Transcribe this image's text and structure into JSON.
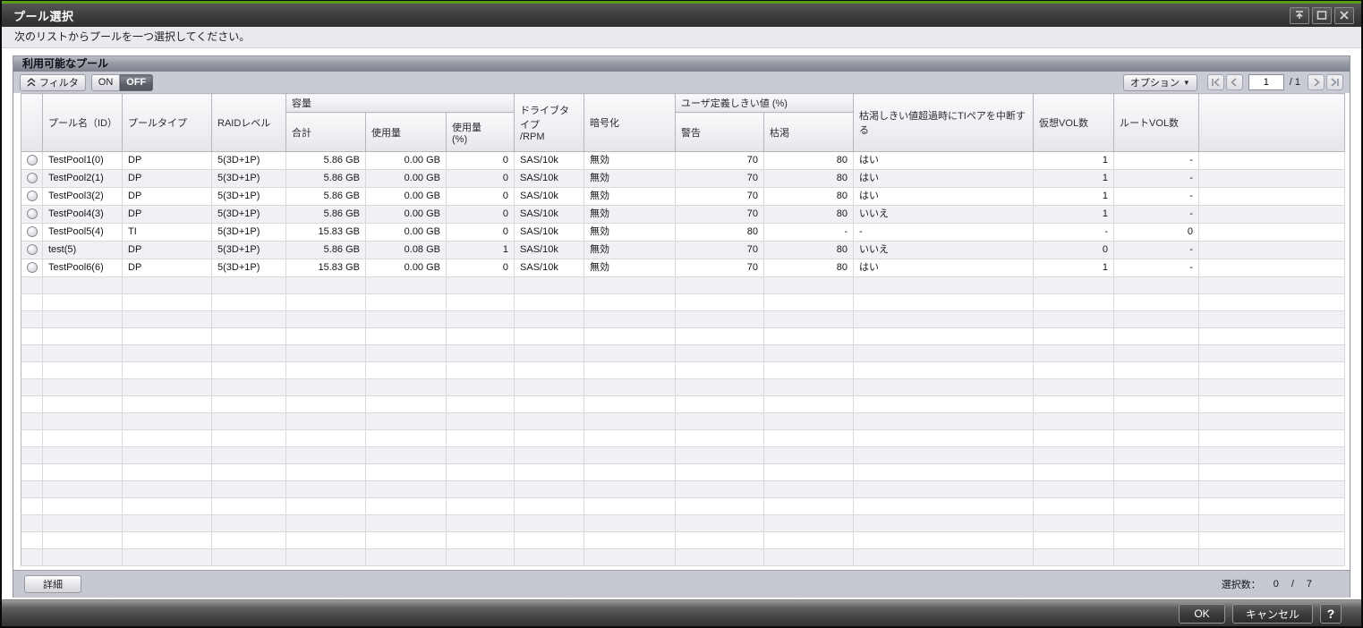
{
  "window": {
    "title": "プール選択",
    "instruction": "次のリストからプールを一つ選択してください。"
  },
  "panel": {
    "title": "利用可能なプール",
    "toolbar": {
      "filter_label": "フィルタ",
      "on_label": "ON",
      "off_label": "OFF",
      "filter_state": "OFF",
      "options_label": "オプション",
      "page_value": "1",
      "page_total": "/ 1"
    },
    "footer": {
      "detail_label": "詳細",
      "selection_label": "選択数：",
      "selection_count": "0",
      "selection_sep": "/",
      "selection_total": "7"
    }
  },
  "table": {
    "groups": {
      "capacity": "容量",
      "user_threshold": "ユーザ定義しきい値 (%)"
    },
    "headers": {
      "name": "プール名（ID）",
      "type": "プールタイプ",
      "raid": "RAIDレベル",
      "total": "合計",
      "used": "使用量",
      "used_pct": "使用量\n(%)",
      "drive": "ドライブタイプ\n/RPM",
      "encryption": "暗号化",
      "warning": "警告",
      "depletion": "枯渇",
      "suspend_ti": "枯渇しきい値超過時にTIペアを中断する",
      "virtual_vols": "仮想VOL数",
      "root_vols": "ルートVOL数"
    },
    "rows": [
      {
        "name": "TestPool1(0)",
        "type": "DP",
        "raid": "5(3D+1P)",
        "total": "5.86 GB",
        "used": "0.00 GB",
        "used_pct": "0",
        "drive": "SAS/10k",
        "encryption": "無効",
        "warning": "70",
        "depletion": "80",
        "suspend_ti": "はい",
        "virtual_vols": "1",
        "root_vols": "-"
      },
      {
        "name": "TestPool2(1)",
        "type": "DP",
        "raid": "5(3D+1P)",
        "total": "5.86 GB",
        "used": "0.00 GB",
        "used_pct": "0",
        "drive": "SAS/10k",
        "encryption": "無効",
        "warning": "70",
        "depletion": "80",
        "suspend_ti": "はい",
        "virtual_vols": "1",
        "root_vols": "-"
      },
      {
        "name": "TestPool3(2)",
        "type": "DP",
        "raid": "5(3D+1P)",
        "total": "5.86 GB",
        "used": "0.00 GB",
        "used_pct": "0",
        "drive": "SAS/10k",
        "encryption": "無効",
        "warning": "70",
        "depletion": "80",
        "suspend_ti": "はい",
        "virtual_vols": "1",
        "root_vols": "-"
      },
      {
        "name": "TestPool4(3)",
        "type": "DP",
        "raid": "5(3D+1P)",
        "total": "5.86 GB",
        "used": "0.00 GB",
        "used_pct": "0",
        "drive": "SAS/10k",
        "encryption": "無効",
        "warning": "70",
        "depletion": "80",
        "suspend_ti": "いいえ",
        "virtual_vols": "1",
        "root_vols": "-"
      },
      {
        "name": "TestPool5(4)",
        "type": "TI",
        "raid": "5(3D+1P)",
        "total": "15.83 GB",
        "used": "0.00 GB",
        "used_pct": "0",
        "drive": "SAS/10k",
        "encryption": "無効",
        "warning": "80",
        "depletion": "-",
        "suspend_ti": "-",
        "virtual_vols": "-",
        "root_vols": "0"
      },
      {
        "name": "test(5)",
        "type": "DP",
        "raid": "5(3D+1P)",
        "total": "5.86 GB",
        "used": "0.08 GB",
        "used_pct": "1",
        "drive": "SAS/10k",
        "encryption": "無効",
        "warning": "70",
        "depletion": "80",
        "suspend_ti": "いいえ",
        "virtual_vols": "0",
        "root_vols": "-"
      },
      {
        "name": "TestPool6(6)",
        "type": "DP",
        "raid": "5(3D+1P)",
        "total": "15.83 GB",
        "used": "0.00 GB",
        "used_pct": "0",
        "drive": "SAS/10k",
        "encryption": "無効",
        "warning": "70",
        "depletion": "80",
        "suspend_ti": "はい",
        "virtual_vols": "1",
        "root_vols": "-"
      }
    ]
  },
  "footer_bar": {
    "ok_label": "OK",
    "cancel_label": "キャンセル",
    "help_label": "?"
  },
  "colors": {
    "accent_green": "#5a9e1e",
    "titlebar_dark": "#3c3c3c",
    "panel_header_gray": "#8e929c",
    "toolbar_gray": "#c8cbd3",
    "row_alt": "#f0f1f4"
  }
}
